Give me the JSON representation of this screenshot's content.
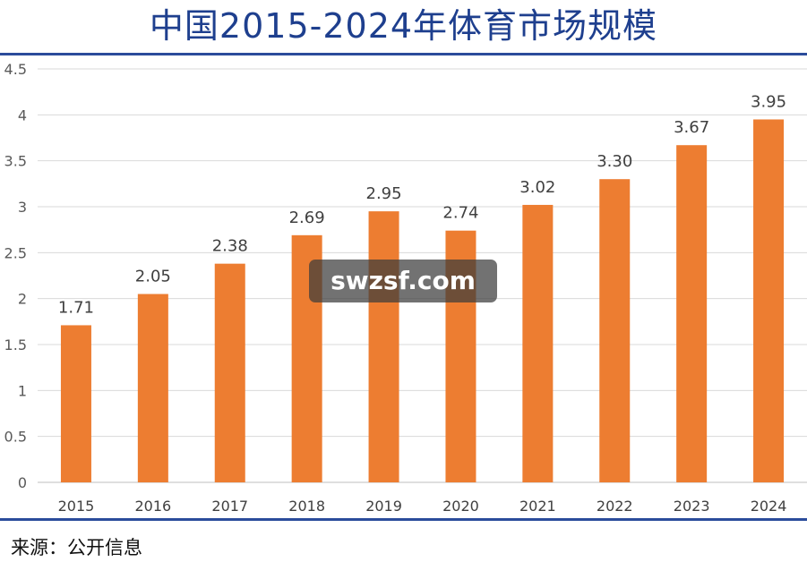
{
  "title": "中国2015-2024年体育市场规模",
  "source": "来源：公开信息",
  "watermark": "swzsf.com",
  "colors": {
    "bar": "#ed7d31",
    "title": "#1e3f8e",
    "rule": "#2b4c9b",
    "grid": "#d9d9d9"
  },
  "chart_data": {
    "type": "bar",
    "title": "中国2015-2024年体育市场规模",
    "categories": [
      "2015",
      "2016",
      "2017",
      "2018",
      "2019",
      "2020",
      "2021",
      "2022",
      "2023",
      "2024"
    ],
    "values": [
      1.71,
      2.05,
      2.38,
      2.69,
      2.95,
      2.74,
      3.02,
      3.3,
      3.67,
      3.95
    ],
    "value_labels": [
      "1.71",
      "2.05",
      "2.38",
      "2.69",
      "2.95",
      "2.74",
      "3.02",
      "3.30",
      "3.67",
      "3.95"
    ],
    "yticks": [
      "0",
      "0.5",
      "1",
      "1.5",
      "2",
      "2.5",
      "3",
      "3.5",
      "4",
      "4.5"
    ],
    "ylim": [
      0,
      4.5
    ],
    "grid": true,
    "legend": "none"
  }
}
